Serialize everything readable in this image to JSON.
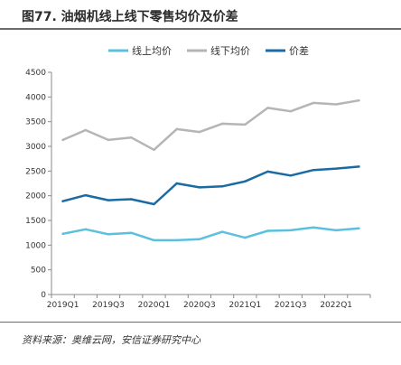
{
  "figure": {
    "title": "图77. 油烟机线上线下零售均价及价差",
    "source": "资料来源：奥维云网，安信证券研究中心"
  },
  "chart_data": {
    "type": "line",
    "title": "",
    "xlabel": "",
    "ylabel": "",
    "x": [
      "2019Q1",
      "2019Q2",
      "2019Q3",
      "2019Q4",
      "2020Q1",
      "2020Q2",
      "2020Q3",
      "2020Q4",
      "2021Q1",
      "2021Q2",
      "2021Q3",
      "2021Q4",
      "2022Q1",
      "2022Q2"
    ],
    "x_tick_labels": [
      "2019Q1",
      "2019Q3",
      "2020Q1",
      "2020Q3",
      "2021Q1",
      "2021Q3",
      "2022Q1"
    ],
    "ylim": [
      0,
      4500
    ],
    "y_ticks": [
      0,
      500,
      1000,
      1500,
      2000,
      2500,
      3000,
      3500,
      4000,
      4500
    ],
    "grid": false,
    "legend_position": "top",
    "series": [
      {
        "name": "线上均价",
        "color": "#5bc0de",
        "values": [
          1230,
          1320,
          1220,
          1250,
          1100,
          1100,
          1120,
          1270,
          1150,
          1290,
          1300,
          1360,
          1300,
          1340
        ]
      },
      {
        "name": "线下均价",
        "color": "#b5b5b5",
        "values": [
          3130,
          3330,
          3130,
          3180,
          2930,
          3350,
          3290,
          3460,
          3440,
          3780,
          3710,
          3880,
          3850,
          3930
        ]
      },
      {
        "name": "价差",
        "color": "#1a6aa3",
        "values": [
          1890,
          2010,
          1910,
          1930,
          1830,
          2250,
          2170,
          2190,
          2290,
          2490,
          2410,
          2520,
          2550,
          2590
        ]
      }
    ]
  }
}
